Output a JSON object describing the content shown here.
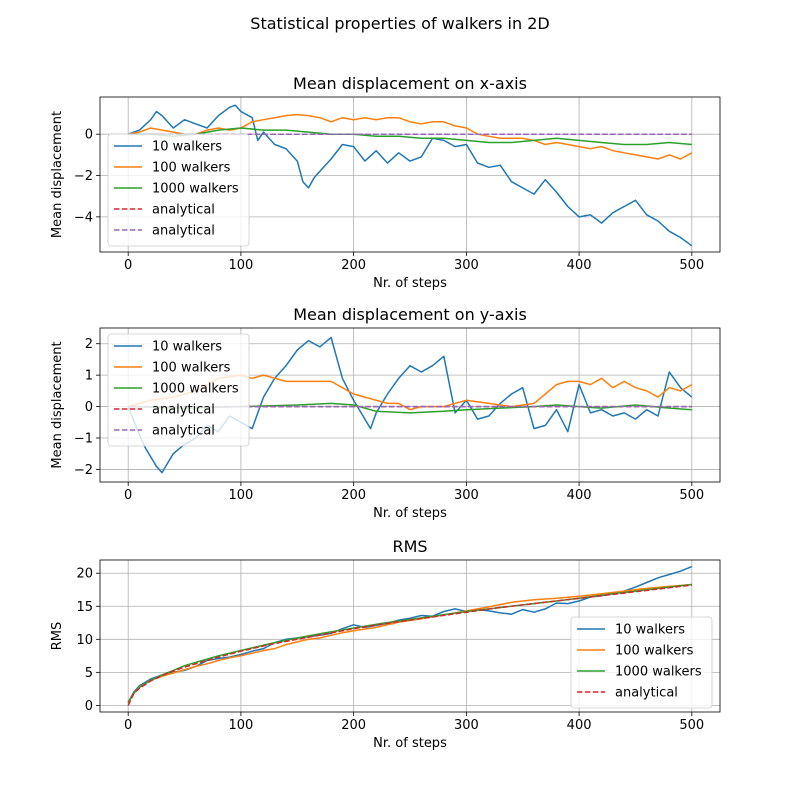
{
  "figure": {
    "title": "Statistical properties of walkers in 2D"
  },
  "colors": {
    "s10": "#1f77b4",
    "s100": "#ff7f0e",
    "s1000": "#2ca02c",
    "analytical_red": "#d62728",
    "analytical_purple": "#9467bd",
    "grid": "#b0b0b0"
  },
  "chart_data": [
    {
      "type": "line",
      "title": "Mean displacement on x-axis",
      "xlabel": "Nr. of steps",
      "ylabel": "Mean displacement",
      "xlim": [
        -25,
        525
      ],
      "ylim": [
        -5.7,
        1.8
      ],
      "xticks": [
        0,
        100,
        200,
        300,
        400,
        500
      ],
      "yticks": [
        -4,
        -2,
        0
      ],
      "grid": true,
      "legend_position": "lower-left",
      "series": [
        {
          "name": "10 walkers",
          "color": "#1f77b4",
          "style": "solid",
          "x": [
            0,
            10,
            20,
            25,
            30,
            40,
            50,
            60,
            70,
            80,
            90,
            95,
            100,
            110,
            115,
            120,
            130,
            140,
            150,
            155,
            160,
            165,
            170,
            180,
            190,
            200,
            210,
            220,
            230,
            240,
            250,
            260,
            270,
            280,
            290,
            300,
            310,
            320,
            330,
            340,
            350,
            360,
            370,
            380,
            390,
            400,
            410,
            420,
            430,
            440,
            450,
            460,
            470,
            480,
            490,
            500
          ],
          "y": [
            0,
            0.2,
            0.7,
            1.1,
            0.9,
            0.3,
            0.7,
            0.5,
            0.3,
            0.9,
            1.3,
            1.4,
            1.1,
            0.8,
            -0.3,
            0.1,
            -0.5,
            -0.7,
            -1.3,
            -2.3,
            -2.6,
            -2.1,
            -1.8,
            -1.2,
            -0.5,
            -0.6,
            -1.3,
            -0.8,
            -1.4,
            -0.9,
            -1.3,
            -1.1,
            -0.2,
            -0.3,
            -0.6,
            -0.5,
            -1.4,
            -1.6,
            -1.5,
            -2.3,
            -2.6,
            -2.9,
            -2.2,
            -2.8,
            -3.5,
            -4.0,
            -3.9,
            -4.3,
            -3.8,
            -3.5,
            -3.2,
            -3.9,
            -4.2,
            -4.7,
            -5.0,
            -5.4
          ]
        },
        {
          "name": "100 walkers",
          "color": "#ff7f0e",
          "style": "solid",
          "x": [
            0,
            10,
            20,
            30,
            40,
            50,
            60,
            70,
            80,
            90,
            100,
            110,
            120,
            130,
            140,
            150,
            160,
            170,
            180,
            190,
            200,
            210,
            220,
            230,
            240,
            250,
            260,
            270,
            280,
            290,
            300,
            310,
            320,
            330,
            340,
            350,
            360,
            370,
            380,
            390,
            400,
            410,
            420,
            430,
            440,
            450,
            460,
            470,
            480,
            490,
            500
          ],
          "y": [
            0,
            0.1,
            0.3,
            0.2,
            0.1,
            0,
            0,
            0.2,
            0.3,
            0.2,
            0.3,
            0.6,
            0.7,
            0.8,
            0.9,
            0.95,
            0.9,
            0.8,
            0.6,
            0.8,
            0.7,
            0.8,
            0.7,
            0.8,
            0.8,
            0.6,
            0.5,
            0.6,
            0.6,
            0.4,
            0.3,
            0,
            -0.1,
            -0.2,
            -0.2,
            -0.2,
            -0.3,
            -0.5,
            -0.4,
            -0.5,
            -0.6,
            -0.7,
            -0.6,
            -0.8,
            -0.9,
            -1.0,
            -1.1,
            -1.2,
            -1.0,
            -1.2,
            -0.9
          ]
        },
        {
          "name": "1000 walkers",
          "color": "#2ca02c",
          "style": "solid",
          "x": [
            0,
            20,
            40,
            60,
            80,
            100,
            120,
            140,
            160,
            180,
            200,
            220,
            240,
            260,
            280,
            300,
            320,
            340,
            360,
            380,
            400,
            420,
            440,
            460,
            480,
            500
          ],
          "y": [
            0,
            0,
            -0.1,
            0,
            0.2,
            0.3,
            0.2,
            0.2,
            0.1,
            0,
            0,
            -0.1,
            -0.1,
            -0.2,
            -0.2,
            -0.3,
            -0.4,
            -0.4,
            -0.3,
            -0.2,
            -0.3,
            -0.4,
            -0.5,
            -0.5,
            -0.4,
            -0.5
          ]
        },
        {
          "name": "analytical",
          "color": "#d62728",
          "style": "dashed",
          "x": [
            0,
            500
          ],
          "y": [
            0,
            0
          ]
        },
        {
          "name": "analytical",
          "color": "#9467bd",
          "style": "dashed",
          "x": [
            0,
            500
          ],
          "y": [
            0,
            0
          ]
        }
      ]
    },
    {
      "type": "line",
      "title": "Mean displacement on y-axis",
      "xlabel": "Nr. of steps",
      "ylabel": "Mean displacement",
      "xlim": [
        -25,
        525
      ],
      "ylim": [
        -2.4,
        2.5
      ],
      "xticks": [
        0,
        100,
        200,
        300,
        400,
        500
      ],
      "yticks": [
        -2,
        -1,
        0,
        1,
        2
      ],
      "grid": true,
      "legend_position": "lower-left",
      "series": [
        {
          "name": "10 walkers",
          "color": "#1f77b4",
          "style": "solid",
          "x": [
            0,
            10,
            15,
            20,
            25,
            30,
            35,
            40,
            50,
            60,
            70,
            80,
            90,
            100,
            110,
            115,
            120,
            130,
            140,
            150,
            160,
            170,
            180,
            190,
            200,
            210,
            215,
            220,
            230,
            240,
            250,
            260,
            270,
            280,
            290,
            300,
            310,
            320,
            330,
            340,
            350,
            360,
            370,
            380,
            390,
            400,
            410,
            420,
            430,
            440,
            450,
            460,
            470,
            480,
            490,
            500
          ],
          "y": [
            0,
            -0.9,
            -1.3,
            -1.6,
            -1.9,
            -2.1,
            -1.8,
            -1.5,
            -1.2,
            -1.0,
            -0.6,
            -0.8,
            -0.3,
            -0.5,
            -0.7,
            -0.2,
            0.3,
            0.9,
            1.3,
            1.8,
            2.1,
            1.9,
            2.2,
            0.9,
            0.2,
            -0.4,
            -0.7,
            -0.2,
            0.4,
            0.9,
            1.3,
            1.1,
            1.3,
            1.6,
            -0.2,
            0.2,
            -0.4,
            -0.3,
            0.1,
            0.4,
            0.6,
            -0.7,
            -0.6,
            -0.1,
            -0.8,
            0.7,
            -0.2,
            -0.1,
            -0.3,
            -0.2,
            -0.4,
            -0.1,
            -0.3,
            1.1,
            0.6,
            0.3
          ]
        },
        {
          "name": "100 walkers",
          "color": "#ff7f0e",
          "style": "solid",
          "x": [
            0,
            20,
            40,
            60,
            80,
            100,
            110,
            120,
            130,
            140,
            150,
            160,
            170,
            180,
            190,
            200,
            210,
            220,
            230,
            240,
            250,
            260,
            270,
            280,
            290,
            300,
            320,
            340,
            360,
            370,
            380,
            390,
            400,
            410,
            420,
            430,
            440,
            450,
            460,
            470,
            480,
            490,
            500
          ],
          "y": [
            0,
            0.2,
            0.3,
            0.5,
            0.9,
            1.0,
            0.9,
            1.0,
            0.9,
            0.8,
            0.8,
            0.8,
            0.8,
            0.8,
            0.6,
            0.4,
            0.3,
            0.2,
            0.1,
            0.1,
            -0.1,
            0,
            0,
            0,
            0.1,
            0.2,
            0.1,
            0,
            0.1,
            0.4,
            0.7,
            0.8,
            0.8,
            0.7,
            0.9,
            0.6,
            0.8,
            0.6,
            0.5,
            0.3,
            0.6,
            0.5,
            0.7
          ]
        },
        {
          "name": "1000 walkers",
          "color": "#2ca02c",
          "style": "solid",
          "x": [
            0,
            50,
            100,
            150,
            180,
            200,
            220,
            250,
            280,
            300,
            330,
            360,
            380,
            400,
            420,
            450,
            480,
            500
          ],
          "y": [
            0,
            -0.05,
            0,
            0.05,
            0.1,
            0.05,
            -0.15,
            -0.2,
            -0.15,
            -0.1,
            -0.05,
            0,
            0.05,
            0,
            -0.05,
            0.05,
            -0.05,
            -0.1
          ]
        },
        {
          "name": "analytical",
          "color": "#d62728",
          "style": "dashed",
          "x": [
            0,
            500
          ],
          "y": [
            0,
            0
          ]
        },
        {
          "name": "analytical",
          "color": "#9467bd",
          "style": "dashed",
          "x": [
            0,
            500
          ],
          "y": [
            0,
            0
          ]
        }
      ]
    },
    {
      "type": "line",
      "title": "RMS",
      "xlabel": "Nr. of steps",
      "ylabel": "RMS",
      "xlim": [
        -25,
        525
      ],
      "ylim": [
        -1,
        22
      ],
      "xticks": [
        0,
        100,
        200,
        300,
        400,
        500
      ],
      "yticks": [
        0,
        5,
        10,
        15,
        20
      ],
      "grid": true,
      "legend_position": "lower-right",
      "series": [
        {
          "name": "10 walkers",
          "color": "#1f77b4",
          "style": "solid",
          "x": [
            0,
            5,
            10,
            20,
            30,
            40,
            50,
            60,
            70,
            80,
            90,
            100,
            110,
            120,
            130,
            140,
            150,
            160,
            170,
            180,
            190,
            200,
            210,
            220,
            230,
            240,
            250,
            260,
            270,
            280,
            290,
            300,
            310,
            320,
            330,
            340,
            350,
            360,
            370,
            380,
            390,
            400,
            410,
            420,
            430,
            440,
            450,
            460,
            470,
            480,
            490,
            500
          ],
          "y": [
            0.5,
            2.0,
            3.0,
            4.0,
            4.6,
            5.0,
            5.3,
            5.9,
            6.8,
            7.1,
            7.3,
            7.7,
            8.2,
            8.6,
            9.5,
            10.0,
            10.2,
            10.4,
            10.6,
            10.9,
            11.6,
            12.2,
            11.8,
            12.1,
            12.4,
            12.9,
            13.2,
            13.6,
            13.5,
            14.2,
            14.6,
            14.2,
            14.5,
            14.3,
            14.0,
            13.8,
            14.5,
            14.1,
            14.6,
            15.5,
            15.4,
            15.8,
            16.4,
            16.6,
            16.9,
            17.3,
            17.9,
            18.6,
            19.3,
            19.8,
            20.3,
            21.0
          ]
        },
        {
          "name": "100 walkers",
          "color": "#ff7f0e",
          "style": "solid",
          "x": [
            0,
            5,
            10,
            20,
            30,
            40,
            50,
            60,
            70,
            80,
            90,
            100,
            110,
            120,
            130,
            140,
            150,
            160,
            170,
            180,
            190,
            200,
            220,
            240,
            260,
            280,
            300,
            320,
            340,
            360,
            380,
            400,
            420,
            440,
            460,
            480,
            500
          ],
          "y": [
            0.4,
            1.8,
            2.8,
            3.8,
            4.4,
            4.9,
            5.4,
            5.9,
            6.3,
            6.8,
            7.2,
            7.5,
            7.9,
            8.3,
            8.6,
            9.2,
            9.6,
            10.0,
            10.2,
            10.6,
            11.0,
            11.3,
            11.8,
            12.6,
            13.1,
            13.7,
            14.3,
            14.9,
            15.6,
            16.0,
            16.2,
            16.5,
            16.9,
            17.3,
            17.7,
            18.0,
            18.3
          ]
        },
        {
          "name": "1000 walkers",
          "color": "#2ca02c",
          "style": "solid",
          "x": [
            0,
            5,
            10,
            20,
            30,
            40,
            50,
            60,
            80,
            100,
            125,
            150,
            175,
            200,
            225,
            250,
            275,
            300,
            325,
            350,
            375,
            400,
            425,
            450,
            475,
            500
          ],
          "y": [
            0.3,
            1.9,
            2.7,
            3.8,
            4.6,
            5.3,
            6.0,
            6.5,
            7.5,
            8.3,
            9.3,
            10.2,
            11.0,
            11.7,
            12.4,
            13.0,
            13.6,
            14.2,
            14.7,
            15.2,
            15.7,
            16.2,
            16.8,
            17.3,
            17.8,
            18.3
          ]
        },
        {
          "name": "analytical",
          "color": "#d62728",
          "style": "dashed",
          "x": [
            0,
            5,
            10,
            20,
            30,
            40,
            50,
            60,
            80,
            100,
            125,
            150,
            175,
            200,
            225,
            250,
            275,
            300,
            325,
            350,
            375,
            400,
            425,
            450,
            475,
            500
          ],
          "y": [
            0,
            1.8,
            2.6,
            3.7,
            4.5,
            5.2,
            5.8,
            6.3,
            7.3,
            8.2,
            9.2,
            10.0,
            10.8,
            11.6,
            12.3,
            12.9,
            13.5,
            14.1,
            14.7,
            15.2,
            15.7,
            16.2,
            16.7,
            17.2,
            17.7,
            18.2
          ]
        }
      ]
    }
  ]
}
